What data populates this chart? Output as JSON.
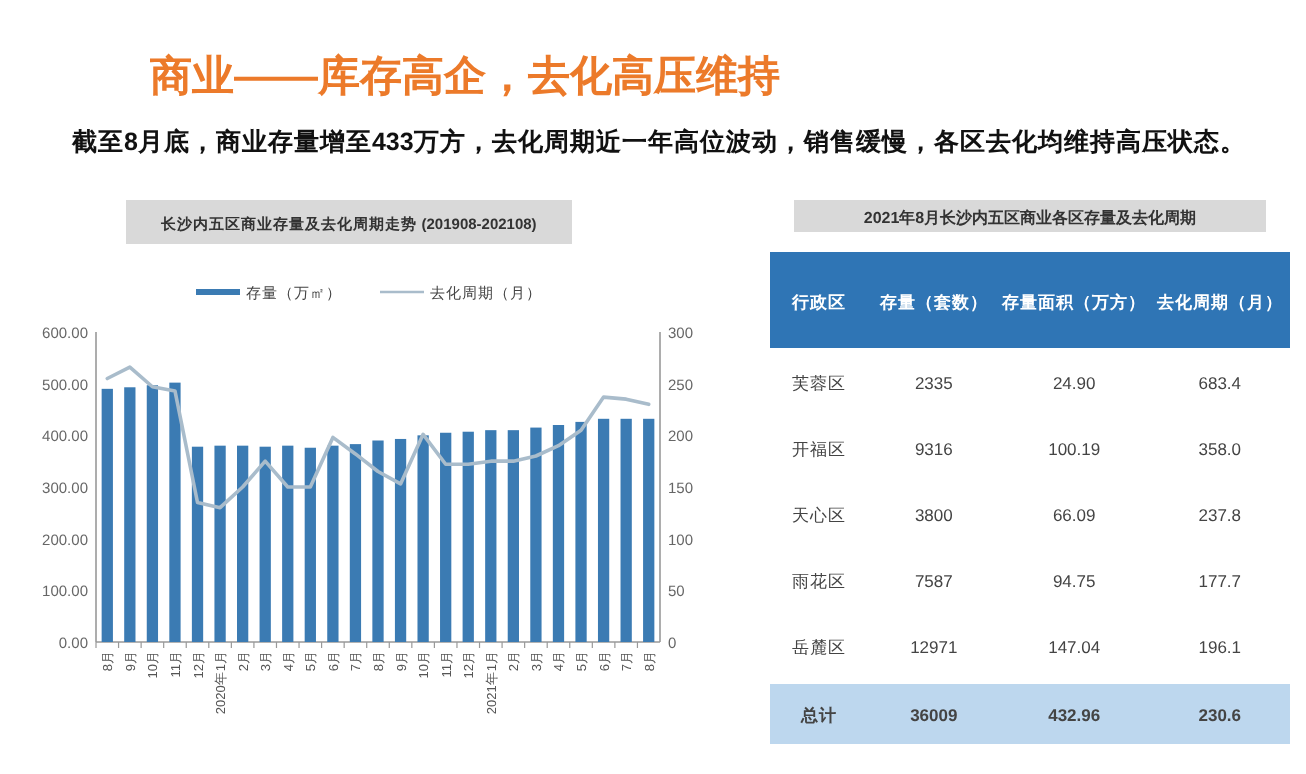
{
  "chart_data": [
    {
      "type": "other",
      "title": "商业——库存高企，去化高压维持",
      "subtitle": "截至8月底，商业存量增至433万方，去化周期近一年高位波动，销售缓慢，各区去化均维持高压状态。"
    },
    {
      "type": "bar",
      "title": "长沙内五区商业存量及去化周期走势 (201908-202108)",
      "legend": "top",
      "categories": [
        "8月",
        "9月",
        "10月",
        "11月",
        "12月",
        "2020年1月",
        "2月",
        "3月",
        "4月",
        "5月",
        "6月",
        "7月",
        "8月",
        "9月",
        "10月",
        "11月",
        "12月",
        "2021年1月",
        "2月",
        "3月",
        "4月",
        "5月",
        "6月",
        "7月",
        "8月"
      ],
      "series": [
        {
          "name": "存量（万㎡）",
          "type": "bar",
          "color": "#3b7bb3",
          "values": [
            490,
            493,
            497,
            502,
            378,
            380,
            380,
            378,
            380,
            376,
            380,
            383,
            390,
            393,
            400,
            405,
            407,
            410,
            410,
            415,
            420,
            426,
            432,
            432,
            432
          ]
        },
        {
          "name": "去化周期（月）",
          "type": "line",
          "axis": "y2",
          "color": "#a9bccb",
          "values": [
            255,
            266,
            247,
            243,
            135,
            130,
            150,
            175,
            150,
            150,
            198,
            182,
            165,
            153,
            201,
            172,
            172,
            175,
            175,
            180,
            190,
            205,
            237,
            235,
            230
          ]
        }
      ],
      "ylim": [
        0,
        600
      ],
      "yticks": [
        {
          "value": 0,
          "label": "0.00"
        },
        {
          "value": 100,
          "label": "100.00"
        },
        {
          "value": 200,
          "label": "200.00"
        },
        {
          "value": 300,
          "label": "300.00"
        },
        {
          "value": 400,
          "label": "400.00"
        },
        {
          "value": 500,
          "label": "500.00"
        },
        {
          "value": 600,
          "label": "600.00"
        }
      ],
      "y2lim": [
        0,
        300
      ],
      "y2ticks": [
        0,
        50,
        100,
        150,
        200,
        250,
        300
      ]
    },
    {
      "type": "other",
      "title": "2021年8月长沙内五区商业各区存量及去化周期",
      "annotations": [
        "行政区",
        "存量（套数）",
        "存量面积（万方）",
        "去化周期（月）",
        "芙蓉区",
        "2335",
        "24.90",
        "683.4",
        "开福区",
        "9316",
        "100.19",
        "358.0",
        "天心区",
        "3800",
        "66.09",
        "237.8",
        "雨花区",
        "7587",
        "94.75",
        "177.7",
        "岳麓区",
        "12971",
        "147.04",
        "196.1",
        "总计",
        "36009",
        "432.96",
        "230.6"
      ]
    }
  ]
}
